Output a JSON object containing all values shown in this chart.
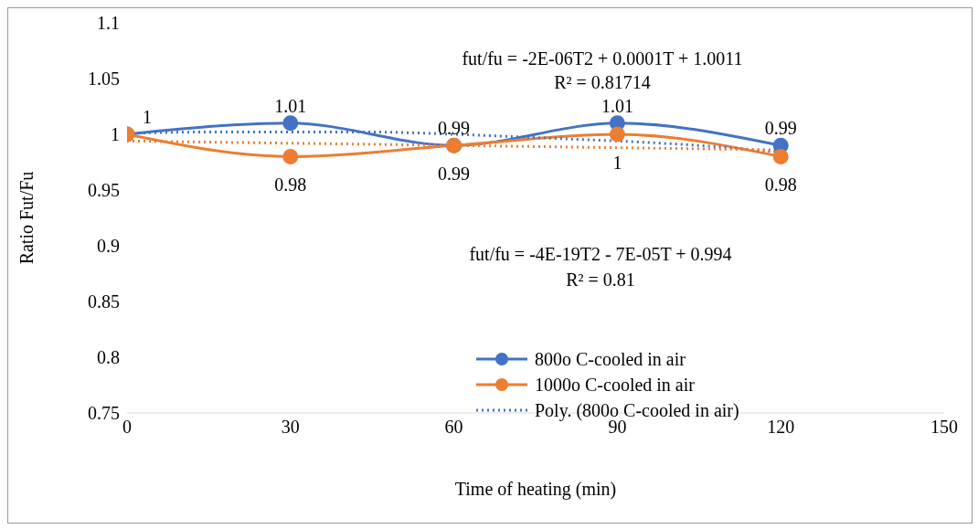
{
  "chart_data": {
    "type": "line",
    "xlabel": "Time of heating (min)",
    "ylabel": "Ratio Fut/Fu",
    "x": [
      0,
      30,
      60,
      90,
      120
    ],
    "xlim": [
      0,
      150
    ],
    "xticks": [
      0,
      30,
      60,
      90,
      120,
      150
    ],
    "ylim": [
      0.75,
      1.1
    ],
    "yticks": [
      0.75,
      0.8,
      0.85,
      0.9,
      0.95,
      1,
      1.05,
      1.1
    ],
    "legend": "bottom right",
    "marker": "circle",
    "line_style": "solid",
    "series": [
      {
        "name": "800o C-cooled in air",
        "color": "#4472c4",
        "values": [
          1,
          1.01,
          0.99,
          1.01,
          0.99
        ],
        "value_labels": [
          "1",
          "1.01",
          "0.99",
          "1.01",
          "0.99"
        ]
      },
      {
        "name": "1000o C-cooled in air",
        "color": "#ed7d31",
        "values": [
          1,
          0.98,
          0.99,
          1,
          0.98
        ],
        "value_labels": [
          null,
          "0.98",
          "0.99",
          "1",
          "0.98"
        ]
      },
      {
        "name": "Poly. (800o C-cooled in air)",
        "color": "#4472c4",
        "type": "line",
        "marker": "none",
        "line_style": "dotted",
        "x": [
          0,
          15,
          30,
          45,
          60,
          75,
          90,
          105,
          120
        ],
        "values": [
          1.001,
          1.002,
          1.002,
          1.002,
          1,
          0.997,
          0.994,
          0.99,
          0.984
        ]
      },
      {
        "color": "#ed7d31",
        "type": "line",
        "marker": "none",
        "line_style": "dotted",
        "x": [
          0,
          120
        ],
        "values": [
          0.994,
          0.986
        ]
      }
    ],
    "annotations": [
      "fut/fu = -2E-06T2 + 0.0001T + 1.0011",
      "R² = 0.81714",
      "fut/fu = -4E-19T2 - 7E-05T + 0.994",
      "R² = 0.81"
    ]
  }
}
